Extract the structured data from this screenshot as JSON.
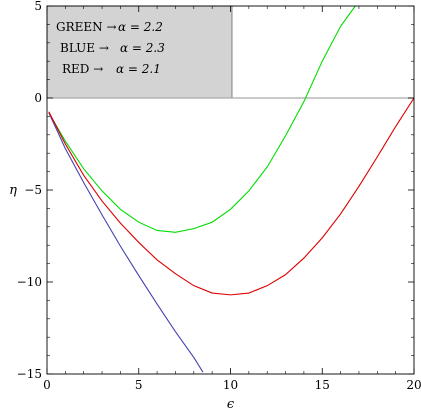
{
  "chart_data": {
    "type": "line",
    "title": "",
    "xlabel": "ϵ",
    "ylabel": "η",
    "xlim": [
      0,
      20
    ],
    "ylim": [
      -15,
      5
    ],
    "xticks": [
      0,
      5,
      10,
      15,
      20
    ],
    "yticks": [
      -15,
      -10,
      -5,
      0,
      5
    ],
    "grid": false,
    "frame": true,
    "series": [
      {
        "color": "#00dd00",
        "x": [
          0.1,
          1,
          2,
          3,
          4,
          5,
          6,
          7,
          8,
          9,
          10,
          11,
          12,
          13,
          14,
          15,
          16,
          16.8
        ],
        "y": [
          -0.8,
          -2.35,
          -3.85,
          -5.05,
          -6.05,
          -6.75,
          -7.2,
          -7.3,
          -7.1,
          -6.75,
          -6.05,
          -5.05,
          -3.75,
          -2.05,
          -0.2,
          2.0,
          3.9,
          5.0
        ]
      },
      {
        "color": "#4444aa",
        "x": [
          0.1,
          1,
          2,
          3,
          4,
          5,
          6,
          7,
          8,
          8.5
        ],
        "y": [
          -0.8,
          -2.75,
          -4.6,
          -6.35,
          -8.05,
          -9.65,
          -11.2,
          -12.7,
          -14.1,
          -14.9
        ]
      },
      {
        "color": "#dd0000",
        "x": [
          0.1,
          1,
          2,
          3,
          4,
          5,
          6,
          7,
          8,
          9,
          10,
          11,
          12,
          13,
          14,
          15,
          16,
          17,
          18,
          19,
          20
        ],
        "y": [
          -0.75,
          -2.5,
          -4.2,
          -5.6,
          -6.8,
          -7.85,
          -8.8,
          -9.55,
          -10.2,
          -10.6,
          -10.7,
          -10.6,
          -10.2,
          -9.6,
          -8.7,
          -7.6,
          -6.3,
          -4.8,
          -3.2,
          -1.55,
          0.0
        ]
      }
    ],
    "hline": 0,
    "legend": {
      "placement": "top-left",
      "background": "#d3d3d3",
      "entries": [
        {
          "label": "GREEN →",
          "value": "α = 2.2"
        },
        {
          "label": "BLUE →",
          "value": "α  =  2.3"
        },
        {
          "label": "RED →",
          "value": "α = 2.1"
        }
      ]
    },
    "colors": {
      "axis": "#000000",
      "zero_line": "#aaaaaa"
    }
  }
}
